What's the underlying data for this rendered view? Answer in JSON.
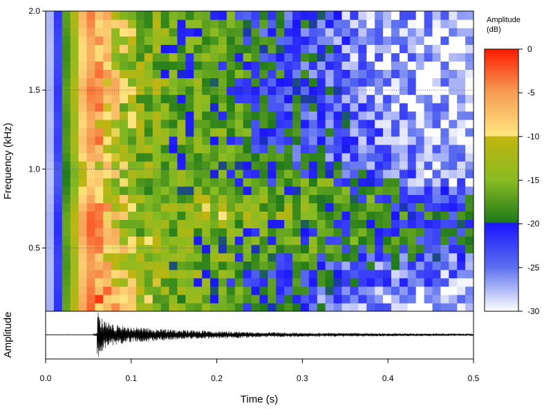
{
  "chart_data": [
    {
      "type": "heatmap",
      "title": "",
      "xlabel": "Time (s)",
      "ylabel": "Frequency (kHz)",
      "xlim": [
        0.0,
        0.5
      ],
      "ylim": [
        0.1,
        2.0
      ],
      "y_ticks": [
        0.5,
        1.0,
        1.5,
        2.0
      ],
      "y_tick_labels": [
        "0.5",
        "1.0",
        "1.5",
        "2.0"
      ],
      "grid": "horizontal dotted lines at y ticks",
      "colorbar": {
        "title_line1": "Amplitude",
        "title_line2": "(dB)",
        "range": [
          -30,
          0
        ],
        "ticks": [
          0,
          -5,
          -10,
          -15,
          -20,
          -25,
          -30
        ],
        "tick_labels": [
          "0",
          "-5",
          "-10",
          "-15",
          "-20",
          "-25",
          "-30"
        ],
        "colors": {
          "0": "#ff1a00",
          "-5": "#f59a52",
          "-10": "#ffe680",
          "-10.5": "#c2b510",
          "-15": "#88bb22",
          "-20": "#1f7a1a",
          "-20.5": "#1a14ff",
          "-25": "#5a6eee",
          "-30": "#ffffff"
        }
      },
      "x_time_axis": [
        0.0,
        0.05,
        0.1,
        0.15,
        0.2,
        0.25,
        0.3,
        0.35,
        0.4,
        0.45,
        0.5
      ],
      "y_freq_axis": [
        0.1,
        0.2,
        0.3,
        0.4,
        0.5,
        0.6,
        0.7,
        0.8,
        0.9,
        1.0,
        1.1,
        1.2,
        1.3,
        1.4,
        1.5,
        1.6,
        1.7,
        1.8,
        1.9,
        2.0
      ],
      "amplitude_db_approx": [
        [
          -30,
          -2,
          -12,
          -17,
          -16,
          -20,
          -23,
          -25,
          -27,
          -28,
          -29
        ],
        [
          -30,
          -3,
          -11,
          -16,
          -18,
          -20,
          -22,
          -26,
          -27,
          -28,
          -29
        ],
        [
          -30,
          -4,
          -13,
          -15,
          -17,
          -21,
          -20,
          -22,
          -24,
          -25,
          -27
        ],
        [
          -30,
          -5,
          -13,
          -16,
          -17,
          -20,
          -21,
          -23,
          -24,
          -25,
          -26
        ],
        [
          -30,
          -4,
          -12,
          -17,
          -16,
          -17,
          -17,
          -19,
          -20,
          -21,
          -22
        ],
        [
          -30,
          -2,
          -14,
          -16,
          -17,
          -18,
          -18,
          -19,
          -20,
          -21,
          -22
        ],
        [
          -30,
          -2,
          -14,
          -17,
          -13,
          -17,
          -14,
          -18,
          -19,
          -20,
          -21
        ],
        [
          -30,
          -5,
          -13,
          -16,
          -12,
          -17,
          -15,
          -18,
          -20,
          -21,
          -22
        ],
        [
          -30,
          -8,
          -15,
          -18,
          -16,
          -20,
          -16,
          -18,
          -22,
          -25,
          -27
        ],
        [
          -30,
          -9,
          -14,
          -17,
          -17,
          -20,
          -21,
          -24,
          -26,
          -27,
          -28
        ],
        [
          -30,
          -5,
          -15,
          -17,
          -17,
          -20,
          -22,
          -24,
          -26,
          -27,
          -28
        ],
        [
          -30,
          -4,
          -15,
          -17,
          -17,
          -20,
          -22,
          -24,
          -26,
          -27,
          -28
        ],
        [
          -30,
          -6,
          -14,
          -17,
          -17,
          -20,
          -22,
          -24,
          -26,
          -28,
          -29
        ],
        [
          -30,
          -4,
          -15,
          -17,
          -17,
          -20,
          -22,
          -25,
          -27,
          -28,
          -29
        ],
        [
          -30,
          -3,
          -13,
          -16,
          -17,
          -20,
          -21,
          -25,
          -27,
          -28,
          -29
        ],
        [
          -30,
          -5,
          -13,
          -17,
          -18,
          -20,
          -22,
          -26,
          -27,
          -28,
          -29
        ],
        [
          -30,
          -6,
          -14,
          -17,
          -18,
          -20,
          -22,
          -26,
          -27,
          -28,
          -29
        ],
        [
          -30,
          -6,
          -13,
          -17,
          -18,
          -21,
          -22,
          -25,
          -27,
          -28,
          -29
        ],
        [
          -30,
          -4,
          -13,
          -17,
          -18,
          -21,
          -22,
          -25,
          -27,
          -28,
          -29
        ],
        [
          -30,
          -3,
          -13,
          -17,
          -18,
          -21,
          -22,
          -25,
          -27,
          -28,
          -29
        ]
      ]
    },
    {
      "type": "line",
      "title": "",
      "xlabel": "Time (s)",
      "ylabel": "Amplitude",
      "xlim": [
        0.0,
        0.5
      ],
      "x_ticks": [
        0.0,
        0.1,
        0.2,
        0.3,
        0.4,
        0.5
      ],
      "x_tick_labels": [
        "0.0",
        "0.1",
        "0.2",
        "0.3",
        "0.4",
        "0.5"
      ],
      "onset_time": 0.06,
      "peak_time": 0.061,
      "envelope_approx": {
        "t": [
          0.0,
          0.055,
          0.06,
          0.061,
          0.07,
          0.08,
          0.1,
          0.15,
          0.2,
          0.25,
          0.3,
          0.4,
          0.5
        ],
        "amp": [
          0.01,
          0.01,
          0.1,
          1.0,
          0.6,
          0.45,
          0.35,
          0.22,
          0.17,
          0.12,
          0.09,
          0.07,
          0.05
        ]
      }
    }
  ]
}
